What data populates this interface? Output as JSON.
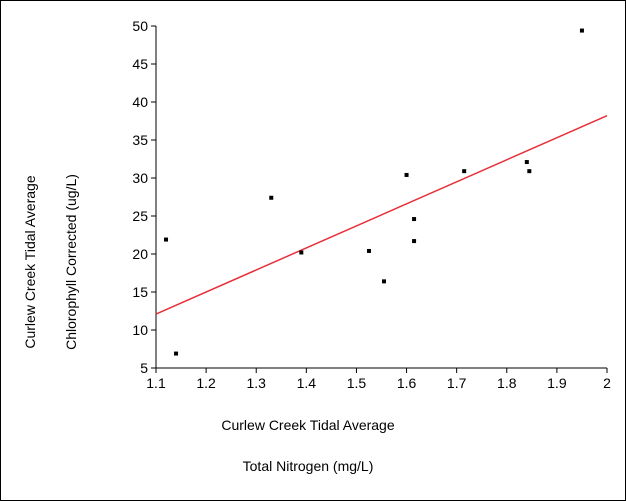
{
  "chart_data": {
    "type": "scatter",
    "title": "",
    "xlabel_lines": [
      "Curlew Creek Tidal Average",
      "Total Nitrogen (mg/L)"
    ],
    "ylabel_lines": [
      "Curlew Creek Tidal Average",
      "Chlorophyll Corrected (ug/L)"
    ],
    "xlim": [
      1.1,
      2
    ],
    "ylim": [
      5,
      50
    ],
    "x_ticks": [
      1.1,
      1.2,
      1.3,
      1.4,
      1.5,
      1.6,
      1.7,
      1.8,
      1.9,
      2
    ],
    "x_tick_labels": [
      "1.1",
      "1.2",
      "1.3",
      "1.4",
      "1.5",
      "1.6",
      "1.7",
      "1.8",
      "1.9",
      "2"
    ],
    "y_ticks": [
      5,
      10,
      15,
      20,
      25,
      30,
      35,
      40,
      45,
      50
    ],
    "y_tick_labels": [
      "5",
      "10",
      "15",
      "20",
      "25",
      "30",
      "35",
      "40",
      "45",
      "50"
    ],
    "grid": false,
    "points": [
      {
        "x": 1.12,
        "y": 21.9
      },
      {
        "x": 1.14,
        "y": 6.9
      },
      {
        "x": 1.33,
        "y": 27.4
      },
      {
        "x": 1.39,
        "y": 20.2
      },
      {
        "x": 1.525,
        "y": 20.4
      },
      {
        "x": 1.555,
        "y": 16.4
      },
      {
        "x": 1.6,
        "y": 30.4
      },
      {
        "x": 1.615,
        "y": 24.6
      },
      {
        "x": 1.615,
        "y": 21.7
      },
      {
        "x": 1.715,
        "y": 30.9
      },
      {
        "x": 1.84,
        "y": 32.1
      },
      {
        "x": 1.845,
        "y": 30.9
      },
      {
        "x": 1.95,
        "y": 49.4
      }
    ],
    "fit_line": {
      "x1": 1.1,
      "y1": 12.1,
      "x2": 2.0,
      "y2": 38.2
    },
    "colors": {
      "points": "#000000",
      "fit_line": "#e8303a",
      "axes": "#000000"
    }
  }
}
